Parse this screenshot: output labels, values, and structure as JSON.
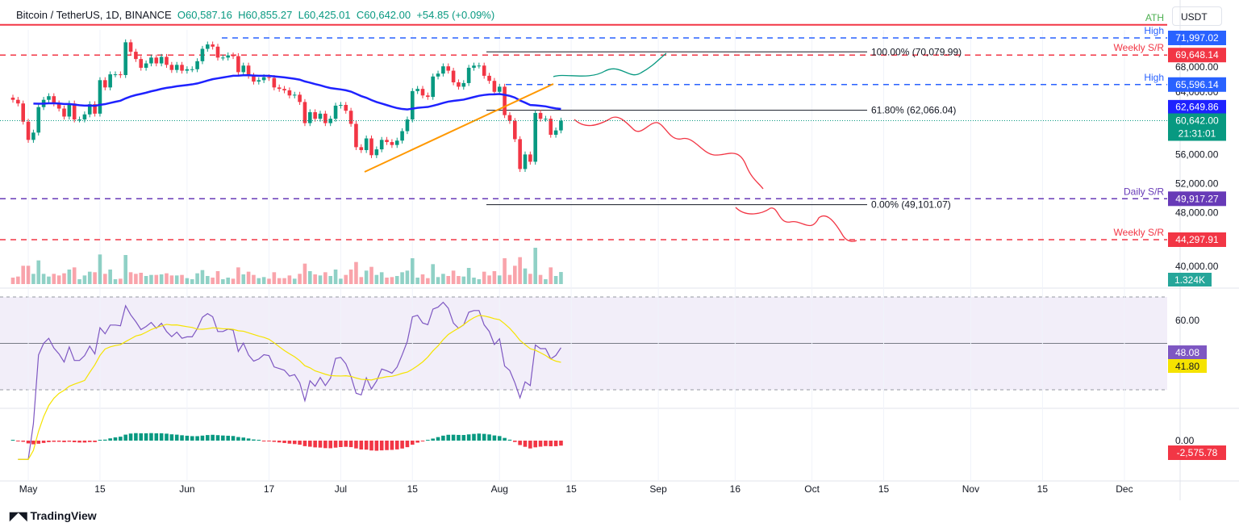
{
  "header": {
    "symbol": "Bitcoin / TetherUS, 1D, BINANCE",
    "open": "O60,587.16",
    "high": "H60,855.27",
    "low": "L60,425.01",
    "close": "C60,642.00",
    "change": "+54.85 (+0.09%)"
  },
  "currency": "USDT",
  "branding": "TradingView",
  "colors": {
    "up": "#089981",
    "down": "#f23645",
    "ma": "#1e22ff",
    "rsi": "#7e57c2",
    "rsi_ma": "#f5e300",
    "trend": "#ff9800"
  },
  "chart_data": {
    "type": "candlestick",
    "price_axis": {
      "ticks": [
        "68,000.00",
        "64,000.00",
        "56,000.00",
        "52,000.00",
        "48,000.00",
        "40,000.00"
      ]
    },
    "time_axis": {
      "ticks": [
        [
          "May",
          "2024-05-01"
        ],
        [
          "15",
          "2024-05-15"
        ],
        [
          "Jun",
          "2024-06-01"
        ],
        [
          "17",
          "2024-06-17"
        ],
        [
          "Jul",
          "2024-07-01"
        ],
        [
          "15",
          "2024-07-15"
        ],
        [
          "Aug",
          "2024-08-01"
        ],
        [
          "15",
          "2024-08-15"
        ],
        [
          "Sep",
          "2024-09-01"
        ],
        [
          "16",
          "2024-09-16"
        ],
        [
          "Oct",
          "2024-10-01"
        ],
        [
          "15",
          "2024-10-15"
        ],
        [
          "Nov",
          "2024-11-01"
        ],
        [
          "15",
          "2024-11-15"
        ],
        [
          "Dec",
          "2024-12-01"
        ]
      ]
    },
    "closes": [
      [
        "2024-04-28",
        63500
      ],
      [
        "2024-04-29",
        63000
      ],
      [
        "2024-04-30",
        60500
      ],
      [
        "2024-05-01",
        58000
      ],
      [
        "2024-05-02",
        59000
      ],
      [
        "2024-05-03",
        62500
      ],
      [
        "2024-05-04",
        63500
      ],
      [
        "2024-05-05",
        64000
      ],
      [
        "2024-05-06",
        63000
      ],
      [
        "2024-05-07",
        62300
      ],
      [
        "2024-05-08",
        61200
      ],
      [
        "2024-05-09",
        63000
      ],
      [
        "2024-05-10",
        60800
      ],
      [
        "2024-05-11",
        60800
      ],
      [
        "2024-05-12",
        61500
      ],
      [
        "2024-05-13",
        62900
      ],
      [
        "2024-05-14",
        61600
      ],
      [
        "2024-05-15",
        66200
      ],
      [
        "2024-05-16",
        65200
      ],
      [
        "2024-05-17",
        67000
      ],
      [
        "2024-05-18",
        67000
      ],
      [
        "2024-05-19",
        66900
      ],
      [
        "2024-05-20",
        71400
      ],
      [
        "2024-05-21",
        70100
      ],
      [
        "2024-05-22",
        69100
      ],
      [
        "2024-05-23",
        67900
      ],
      [
        "2024-05-24",
        68500
      ],
      [
        "2024-05-25",
        69300
      ],
      [
        "2024-05-26",
        68500
      ],
      [
        "2024-05-27",
        69400
      ],
      [
        "2024-05-28",
        68300
      ],
      [
        "2024-05-29",
        67600
      ],
      [
        "2024-05-30",
        68300
      ],
      [
        "2024-05-31",
        67500
      ],
      [
        "2024-06-01",
        67700
      ],
      [
        "2024-06-02",
        67700
      ],
      [
        "2024-06-03",
        68800
      ],
      [
        "2024-06-04",
        70500
      ],
      [
        "2024-06-05",
        71100
      ],
      [
        "2024-06-06",
        70800
      ],
      [
        "2024-06-07",
        69300
      ],
      [
        "2024-06-08",
        69300
      ],
      [
        "2024-06-09",
        69600
      ],
      [
        "2024-06-10",
        69500
      ],
      [
        "2024-06-11",
        67300
      ],
      [
        "2024-06-12",
        68200
      ],
      [
        "2024-06-13",
        66800
      ],
      [
        "2024-06-14",
        66000
      ],
      [
        "2024-06-15",
        66200
      ],
      [
        "2024-06-16",
        66600
      ],
      [
        "2024-06-17",
        66500
      ],
      [
        "2024-06-18",
        65200
      ],
      [
        "2024-06-19",
        65000
      ],
      [
        "2024-06-20",
        64800
      ],
      [
        "2024-06-21",
        64100
      ],
      [
        "2024-06-22",
        64200
      ],
      [
        "2024-06-23",
        63200
      ],
      [
        "2024-06-24",
        60300
      ],
      [
        "2024-06-25",
        61800
      ],
      [
        "2024-06-26",
        60900
      ],
      [
        "2024-06-27",
        61600
      ],
      [
        "2024-06-28",
        60300
      ],
      [
        "2024-06-29",
        60900
      ],
      [
        "2024-06-30",
        62700
      ],
      [
        "2024-07-01",
        62800
      ],
      [
        "2024-07-02",
        62000
      ],
      [
        "2024-07-03",
        60200
      ],
      [
        "2024-07-04",
        57000
      ],
      [
        "2024-07-05",
        56600
      ],
      [
        "2024-07-06",
        58200
      ],
      [
        "2024-07-07",
        55900
      ],
      [
        "2024-07-08",
        56700
      ],
      [
        "2024-07-09",
        58000
      ],
      [
        "2024-07-10",
        57700
      ],
      [
        "2024-07-11",
        57300
      ],
      [
        "2024-07-12",
        57900
      ],
      [
        "2024-07-13",
        59200
      ],
      [
        "2024-07-14",
        60800
      ],
      [
        "2024-07-15",
        64700
      ],
      [
        "2024-07-16",
        65000
      ],
      [
        "2024-07-17",
        64100
      ],
      [
        "2024-07-18",
        63900
      ],
      [
        "2024-07-19",
        66700
      ],
      [
        "2024-07-20",
        67100
      ],
      [
        "2024-07-21",
        68100
      ],
      [
        "2024-07-22",
        67500
      ],
      [
        "2024-07-23",
        65900
      ],
      [
        "2024-07-24",
        65300
      ],
      [
        "2024-07-25",
        65800
      ],
      [
        "2024-07-26",
        67900
      ],
      [
        "2024-07-27",
        68200
      ],
      [
        "2024-07-28",
        68200
      ],
      [
        "2024-07-29",
        66800
      ],
      [
        "2024-07-30",
        66100
      ],
      [
        "2024-07-31",
        64600
      ],
      [
        "2024-08-01",
        65300
      ],
      [
        "2024-08-02",
        61400
      ],
      [
        "2024-08-03",
        60600
      ],
      [
        "2024-08-04",
        58100
      ],
      [
        "2024-08-05",
        54000
      ],
      [
        "2024-08-06",
        56000
      ],
      [
        "2024-08-07",
        55000
      ],
      [
        "2024-08-08",
        61700
      ],
      [
        "2024-08-09",
        60900
      ],
      [
        "2024-08-10",
        60900
      ],
      [
        "2024-08-11",
        58700
      ],
      [
        "2024-08-12",
        59300
      ],
      [
        "2024-08-13",
        60642
      ]
    ],
    "levels": [
      {
        "label": "ATH",
        "price": 73800,
        "value": "",
        "color": "#f23645",
        "style": "solid"
      },
      {
        "label": "High",
        "price": 71997.02,
        "value": "71,997.02",
        "color": "#2962ff",
        "style": "dashed"
      },
      {
        "label": "Weekly S/R",
        "price": 69648.14,
        "value": "69,648.14",
        "color": "#f23645",
        "style": "dashed"
      },
      {
        "label": "High",
        "price": 65596.14,
        "value": "65,596.14",
        "color": "#2962ff",
        "style": "dashed"
      },
      {
        "label": "Daily S/R",
        "price": 49917.27,
        "value": "49,917.27",
        "color": "#673ab7",
        "style": "dashed"
      },
      {
        "label": "Weekly S/R",
        "price": 44297.91,
        "value": "44,297.91",
        "color": "#f23645",
        "style": "dashed"
      }
    ],
    "fib": [
      {
        "label": "100.00% (70,079.99)",
        "price": 70079.99
      },
      {
        "label": "61.80% (62,066.04)",
        "price": 62066.04
      },
      {
        "label": "0.00% (49,101.07)",
        "price": 49101.07
      }
    ],
    "ma_value": "62,649.86",
    "last_price": "60,642.00",
    "countdown": "21:31:01",
    "volume_value": "1.324K",
    "rsi": {
      "value": "48.08",
      "ma_value": "41.80",
      "ticks": [
        "60.00"
      ],
      "upper": 70,
      "lower": 30
    },
    "oscillator": {
      "value": "-2,575.78",
      "ticks": [
        "0.00"
      ]
    }
  }
}
